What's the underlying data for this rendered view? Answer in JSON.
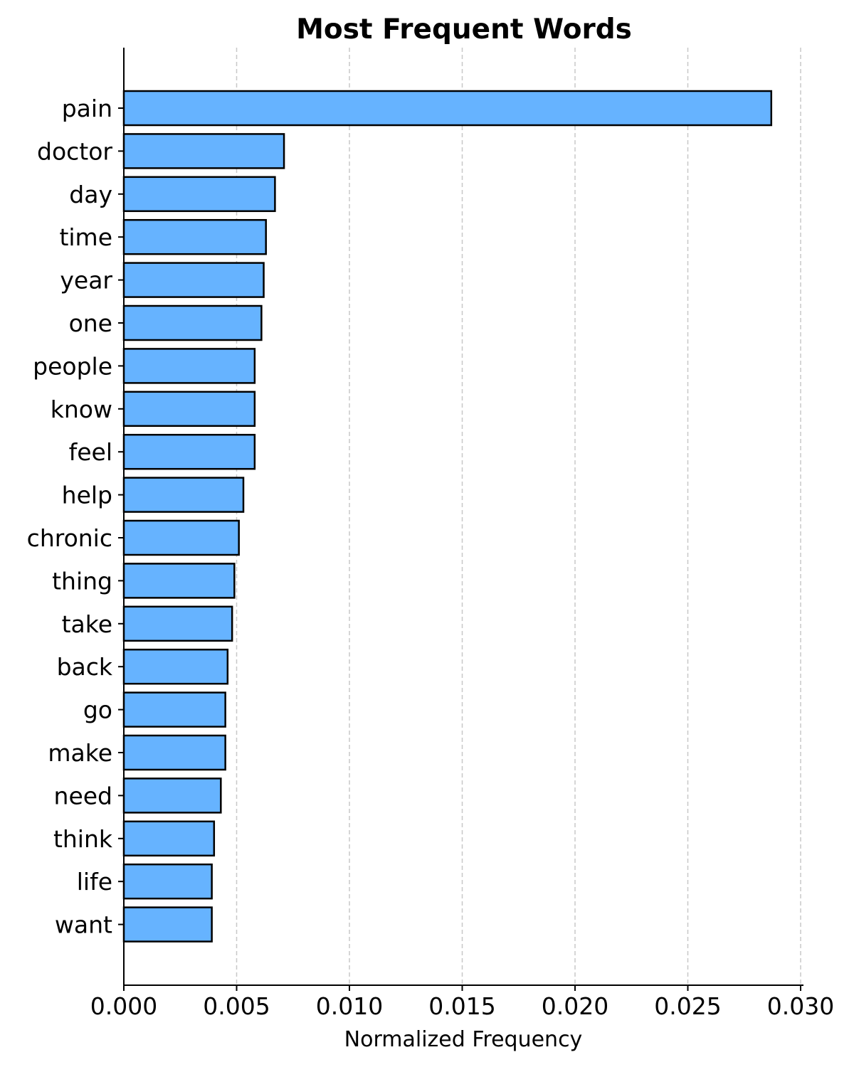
{
  "chart_data": {
    "type": "bar",
    "orientation": "horizontal",
    "title": "Most Frequent Words",
    "xlabel": "Normalized Frequency",
    "ylabel": "",
    "xlim": [
      0.0,
      0.0301
    ],
    "x_ticks": [
      "0.000",
      "0.005",
      "0.010",
      "0.015",
      "0.020",
      "0.025",
      "0.030"
    ],
    "grid": "x-axis dashed",
    "bar_color": "#66b3ff",
    "bar_edge_color": "#000000",
    "categories": [
      "pain",
      "doctor",
      "day",
      "time",
      "year",
      "one",
      "people",
      "know",
      "feel",
      "help",
      "chronic",
      "thing",
      "take",
      "back",
      "go",
      "make",
      "need",
      "think",
      "life",
      "want"
    ],
    "values": [
      0.0287,
      0.0071,
      0.0067,
      0.0063,
      0.0062,
      0.0061,
      0.0058,
      0.0058,
      0.0058,
      0.0053,
      0.0051,
      0.0049,
      0.0048,
      0.0046,
      0.0045,
      0.0045,
      0.0043,
      0.004,
      0.0039,
      0.0039
    ]
  }
}
